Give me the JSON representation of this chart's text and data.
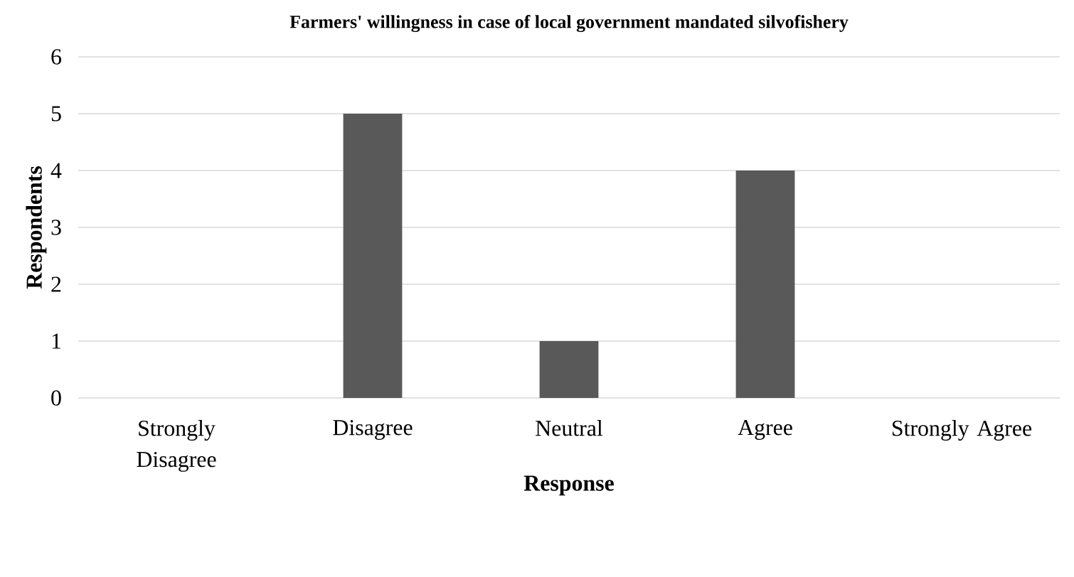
{
  "chart_data": {
    "type": "bar",
    "title": "Farmers' willingness in case of local government mandated silvofishery",
    "xlabel": "Response",
    "ylabel": "Respondents",
    "categories": [
      "Strongly Disagree",
      "Disagree",
      "Neutral",
      "Agree",
      "Strongly Agree"
    ],
    "values": [
      0,
      5,
      1,
      4,
      0
    ],
    "color": "#595959",
    "ylim": [
      0,
      6
    ],
    "yticks": [
      0,
      1,
      2,
      3,
      4,
      5,
      6
    ],
    "grid": "y"
  }
}
